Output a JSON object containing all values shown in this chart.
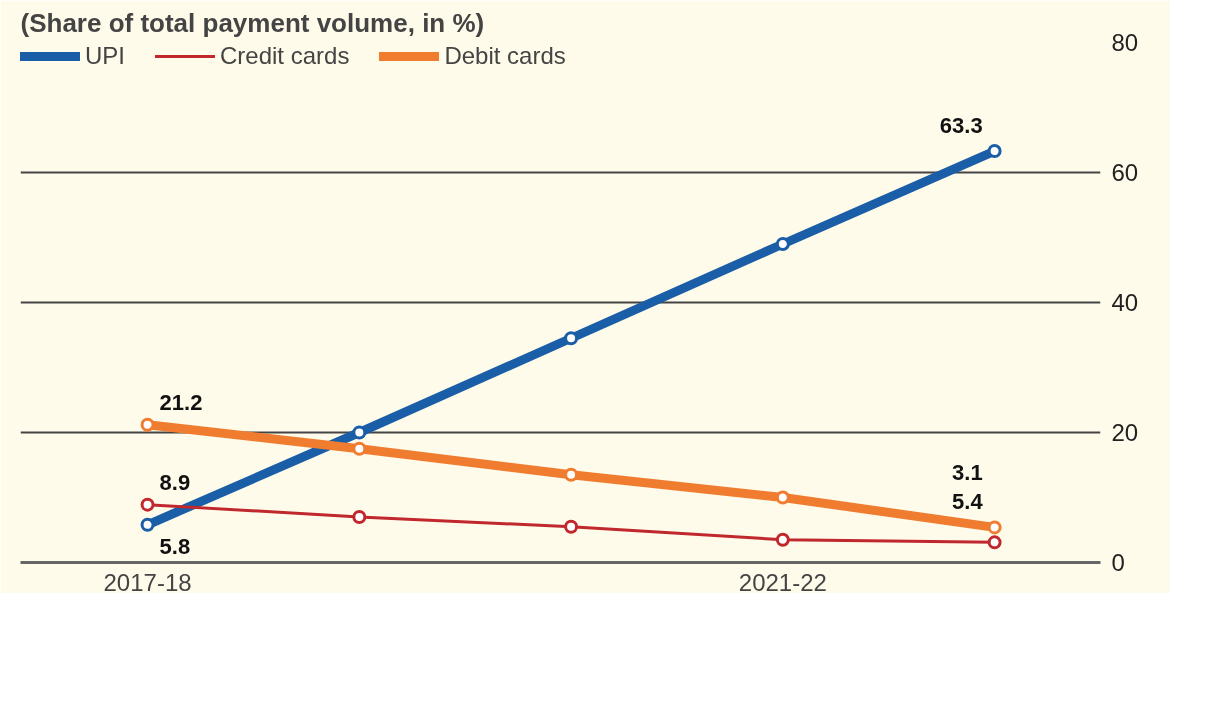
{
  "chart_data": {
    "type": "line",
    "title": "(Share of total payment volume, in %)",
    "categories": [
      "2017-18",
      null,
      null,
      "2021-22",
      null
    ],
    "series": [
      {
        "name": "UPI",
        "color": "#1a5ea8",
        "values": [
          5.8,
          20,
          34.5,
          49,
          63.3
        ],
        "value_labels": [
          "5.8",
          null,
          null,
          null,
          "63.3"
        ]
      },
      {
        "name": "Credit cards",
        "color": "#c0282d",
        "values": [
          8.9,
          7,
          5.5,
          3.5,
          3.1
        ],
        "value_labels": [
          "8.9",
          null,
          null,
          null,
          "3.1"
        ]
      },
      {
        "name": "Debit cards",
        "color": "#f07c30",
        "values": [
          21.2,
          17.5,
          13.5,
          10,
          5.4
        ],
        "value_labels": [
          "21.2",
          null,
          null,
          null,
          "5.4"
        ]
      }
    ],
    "ylim": [
      0,
      80
    ],
    "yticks": [
      0,
      20,
      40,
      60,
      80
    ],
    "grid": "y",
    "legend": "top left",
    "marker": "circle",
    "line_style": "solid"
  }
}
